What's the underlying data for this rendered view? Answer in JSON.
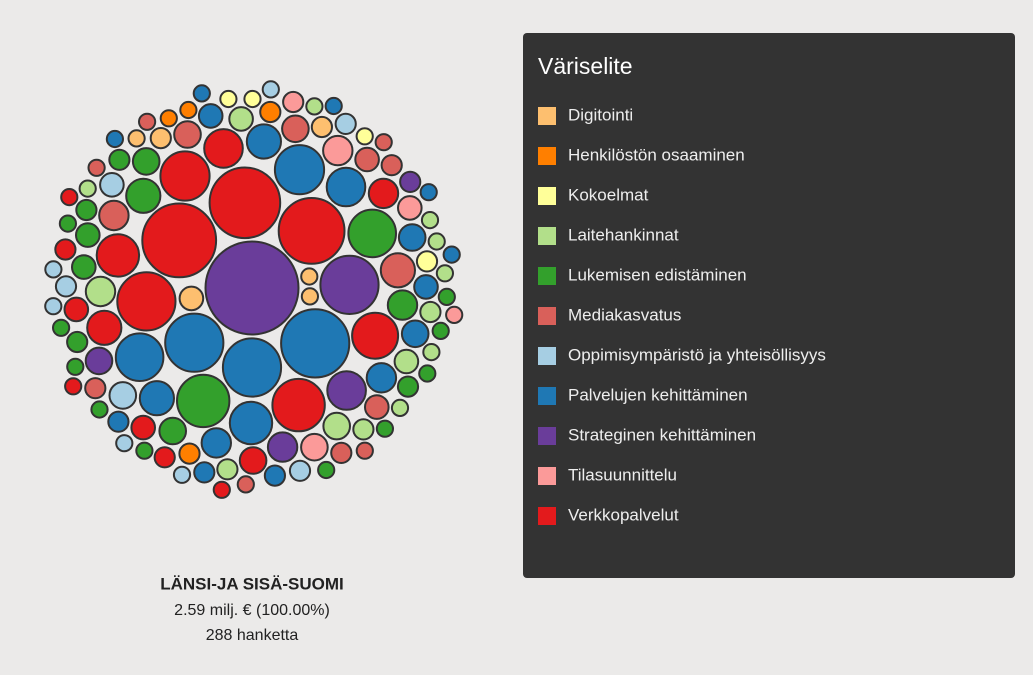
{
  "chart_data": {
    "type": "bubble-pack",
    "legend_title": "Väriselite",
    "caption": {
      "name": "LÄNSI-JA SISÄ-SUOMI",
      "total": "2.59 milj. € (100.00%)",
      "count": "288 hanketta"
    },
    "series": [
      {
        "name": "Digitointi",
        "color": "#fdbf6f",
        "values": [
          4,
          3,
          3,
          2,
          2,
          2
        ]
      },
      {
        "name": "Henkilöstön osaaminen",
        "color": "#ff7f00",
        "values": [
          3,
          3,
          2,
          2
        ]
      },
      {
        "name": "Kokoelmat",
        "color": "#ffff99",
        "values": [
          3,
          2,
          2,
          2
        ]
      },
      {
        "name": "Laitehankinnat",
        "color": "#b2df8a",
        "values": [
          6,
          5,
          4,
          4,
          3,
          3,
          3,
          2,
          2,
          2,
          2,
          2,
          2,
          2
        ]
      },
      {
        "name": "Lukemisen edistäminen",
        "color": "#33a02c",
        "values": [
          18,
          15,
          8,
          6,
          5,
          5,
          4,
          4,
          3,
          3,
          3,
          3,
          2,
          2,
          2,
          2,
          2,
          2,
          2,
          2,
          2,
          2
        ]
      },
      {
        "name": "Mediakasvatus",
        "color": "#d9605a",
        "values": [
          8,
          6,
          5,
          5,
          4,
          4,
          3,
          3,
          3,
          2,
          2,
          2,
          2,
          2
        ]
      },
      {
        "name": "Oppimisympäristö ja yhteisöllisyys",
        "color": "#a6cee3",
        "values": [
          5,
          4,
          3,
          3,
          3,
          2,
          2,
          2,
          2,
          2
        ]
      },
      {
        "name": "Palvelujen kehittäminen",
        "color": "#1f78b4",
        "values": [
          30,
          22,
          22,
          16,
          15,
          12,
          10,
          8,
          8,
          6,
          6,
          5,
          5,
          4,
          4,
          3,
          3,
          3,
          2,
          2,
          2,
          2,
          2
        ]
      },
      {
        "name": "Strateginen kehittäminen",
        "color": "#6a3d9a",
        "values": [
          55,
          22,
          10,
          6,
          5,
          3
        ]
      },
      {
        "name": "Tilasuunnittelu",
        "color": "#fb9a99",
        "values": [
          6,
          5,
          4,
          3,
          2
        ]
      },
      {
        "name": "Verkkopalvelut",
        "color": "#e31a1c",
        "values": [
          35,
          32,
          28,
          22,
          18,
          16,
          14,
          12,
          10,
          8,
          6,
          5,
          4,
          4,
          3,
          3,
          2,
          2,
          2
        ]
      }
    ]
  }
}
